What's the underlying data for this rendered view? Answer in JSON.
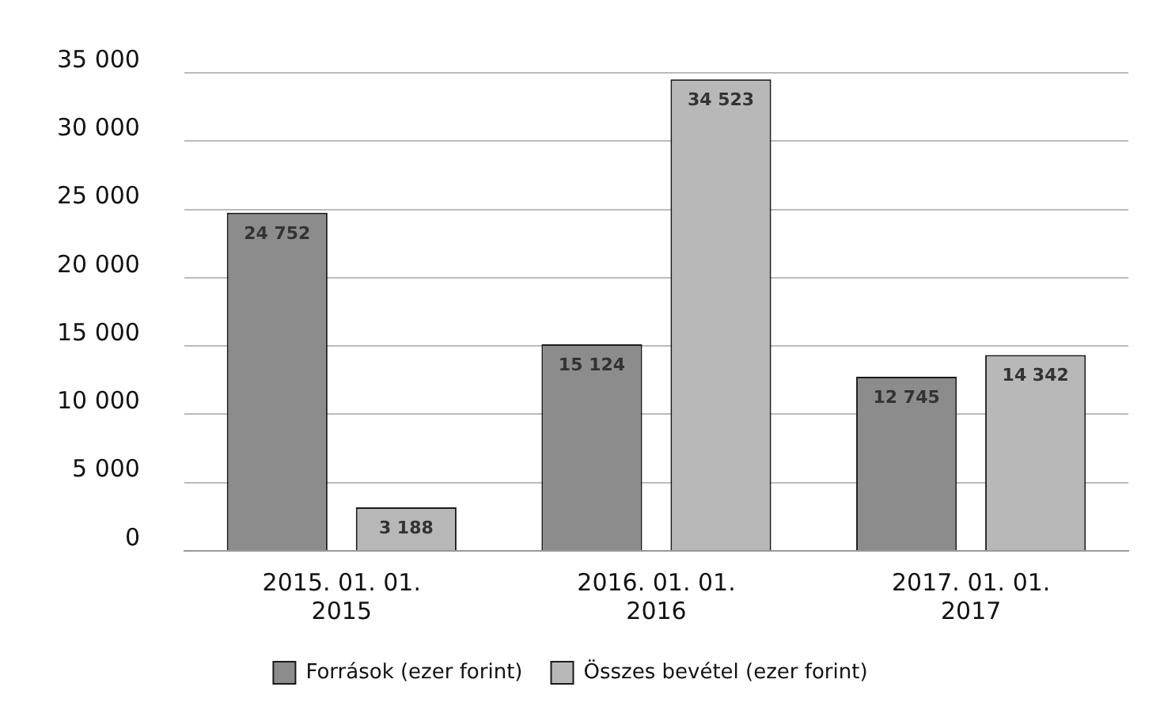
{
  "chart_data": {
    "type": "bar",
    "categories": [
      "2015. 01. 01.\n2015",
      "2016. 01. 01.\n2016",
      "2017. 01. 01.\n2017"
    ],
    "series": [
      {
        "name": "Források (ezer forint)",
        "color": "#8c8c8c",
        "values": [
          24752,
          15124,
          12745
        ],
        "value_labels": [
          "24 752",
          "15 124",
          "12 745"
        ]
      },
      {
        "name": "Összes bevétel (ezer forint)",
        "color": "#b8b8b8",
        "values": [
          3188,
          34523,
          14342
        ],
        "value_labels": [
          "3 188",
          "34 523",
          "14 342"
        ]
      }
    ],
    "ylim": [
      0,
      35000
    ],
    "yticks": [
      {
        "value": 0,
        "label": "0"
      },
      {
        "value": 5000,
        "label": "5 000"
      },
      {
        "value": 10000,
        "label": "10 000"
      },
      {
        "value": 15000,
        "label": "15 000"
      },
      {
        "value": 20000,
        "label": "20 000"
      },
      {
        "value": 25000,
        "label": "25 000"
      },
      {
        "value": 30000,
        "label": "30 000"
      },
      {
        "value": 35000,
        "label": "35 000"
      }
    ],
    "grid": "y",
    "legend": "bottom"
  }
}
